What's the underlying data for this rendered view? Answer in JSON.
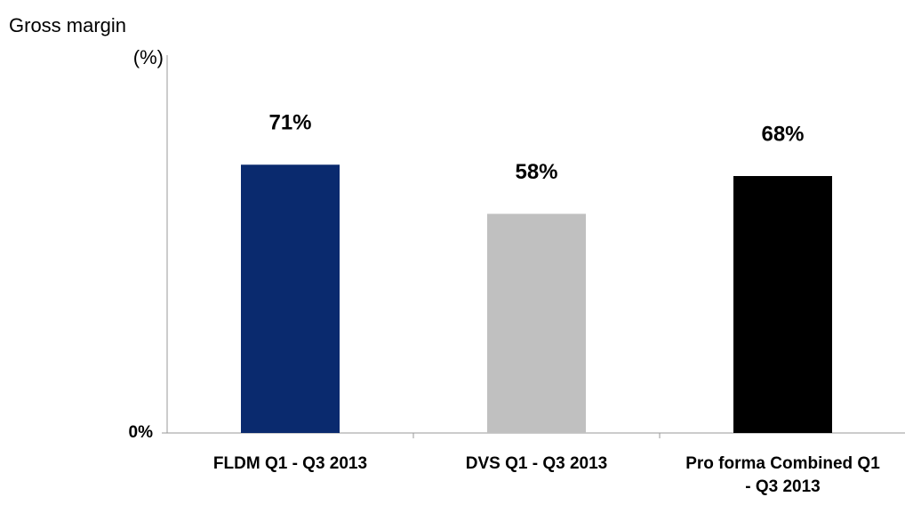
{
  "chart_data": {
    "type": "bar",
    "y_label_lines": [
      "Gross margin",
      "(%)"
    ],
    "categories": [
      "FLDM Q1 - Q3 2013",
      "DVS Q1 - Q3 2013",
      "Pro forma Combined Q1 - Q3 2013"
    ],
    "values": [
      71,
      58,
      68
    ],
    "value_labels": [
      "71%",
      "58%",
      "68%"
    ],
    "colors": [
      "#0a2a6e",
      "#c0c0c0",
      "#000000"
    ],
    "ylim": [
      0,
      100
    ],
    "yticks": [
      {
        "value": 0,
        "label": "0%"
      }
    ],
    "grid": false
  }
}
